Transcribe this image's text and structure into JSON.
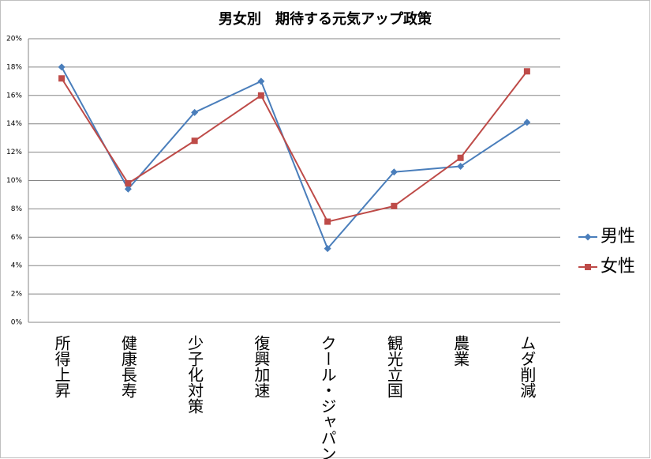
{
  "chart_data": {
    "type": "line",
    "title": "男女別　期待する元気アップ政策",
    "categories": [
      "所得上昇",
      "健康長寿",
      "少子化対策",
      "復興加速",
      "クール・ジャパン",
      "観光立国",
      "農業",
      "ムダ削減"
    ],
    "series": [
      {
        "name": "男性",
        "color": "#4a7ebb",
        "marker": "diamond",
        "values": [
          18.0,
          9.4,
          14.8,
          17.0,
          5.2,
          10.6,
          11.0,
          14.1
        ]
      },
      {
        "name": "女性",
        "color": "#be4b48",
        "marker": "square",
        "values": [
          17.2,
          9.8,
          12.8,
          16.0,
          7.1,
          8.2,
          11.6,
          17.7
        ]
      }
    ],
    "ylim": [
      0,
      20
    ],
    "yticks": [
      {
        "value": 0,
        "label": "0%"
      },
      {
        "value": 2,
        "label": "2%"
      },
      {
        "value": 4,
        "label": "4%"
      },
      {
        "value": 6,
        "label": "6%"
      },
      {
        "value": 8,
        "label": "8%"
      },
      {
        "value": 10,
        "label": "10%"
      },
      {
        "value": 12,
        "label": "12%"
      },
      {
        "value": 14,
        "label": "14%"
      },
      {
        "value": 16,
        "label": "16%"
      },
      {
        "value": 18,
        "label": "18%"
      },
      {
        "value": 20,
        "label": "20%"
      }
    ],
    "grid": true,
    "legend": "right"
  }
}
